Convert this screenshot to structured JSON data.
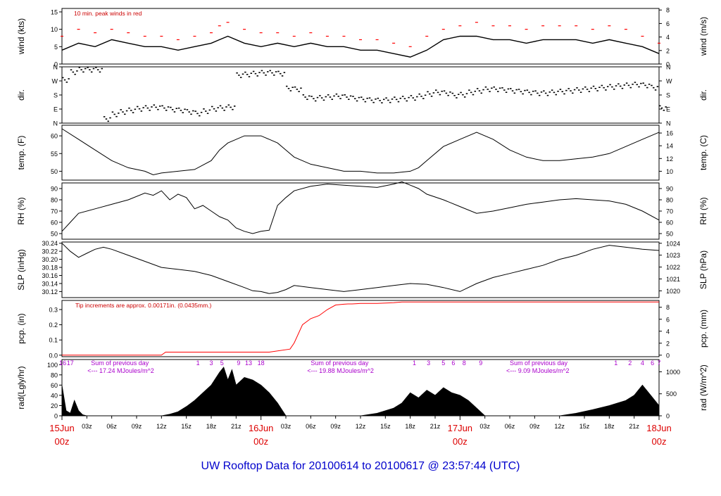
{
  "page": {
    "title": "UW Rooftop Data for 20100614  to  20100617 @ 23:57:44  (UTC)",
    "title_color": "#0000cc",
    "date_labels": [
      {
        "x": 0,
        "day": "15Jun",
        "hour": "00z"
      },
      {
        "x": 24,
        "day": "16Jun",
        "hour": "00z"
      },
      {
        "x": 48,
        "day": "17Jun",
        "hour": "00z"
      },
      {
        "x": 72,
        "day": "18Jun",
        "hour": "00z"
      }
    ],
    "date_label_color": "#dd0000",
    "hour_ticks": [
      {
        "x": 3,
        "label": "03z"
      },
      {
        "x": 6,
        "label": "06z"
      },
      {
        "x": 9,
        "label": "09z"
      },
      {
        "x": 12,
        "label": "12z"
      },
      {
        "x": 15,
        "label": "15z"
      },
      {
        "x": 18,
        "label": "18z"
      },
      {
        "x": 21,
        "label": "21z"
      },
      {
        "x": 27,
        "label": "03z"
      },
      {
        "x": 30,
        "label": "06z"
      },
      {
        "x": 33,
        "label": "09z"
      },
      {
        "x": 36,
        "label": "12z"
      },
      {
        "x": 39,
        "label": "15z"
      },
      {
        "x": 42,
        "label": "18z"
      },
      {
        "x": 45,
        "label": "21z"
      },
      {
        "x": 51,
        "label": "03z"
      },
      {
        "x": 54,
        "label": "06z"
      },
      {
        "x": 57,
        "label": "09z"
      },
      {
        "x": 60,
        "label": "12z"
      },
      {
        "x": 63,
        "label": "15z"
      },
      {
        "x": 66,
        "label": "18z"
      },
      {
        "x": 69,
        "label": "21z"
      }
    ]
  },
  "chart_data": [
    {
      "id": "wind",
      "type": "line",
      "ylabel_left": "wind (kts)",
      "ylabel_right": "wind (m/s)",
      "ylim": [
        0,
        16
      ],
      "left_ticks": [
        0,
        5,
        10,
        15
      ],
      "right_ticks": [
        {
          "value": 0,
          "label": "0"
        },
        {
          "value": 3.888,
          "label": "2"
        },
        {
          "value": 7.776,
          "label": "4"
        },
        {
          "value": 11.664,
          "label": "6"
        },
        {
          "value": 15.552,
          "label": "8"
        }
      ],
      "annotation": "10 min. peak winds in red",
      "annotation_color": "#cc0000",
      "x": [
        0,
        2,
        4,
        6,
        8,
        10,
        12,
        14,
        16,
        18,
        19,
        20,
        22,
        24,
        26,
        28,
        30,
        32,
        34,
        36,
        38,
        40,
        42,
        44,
        46,
        48,
        50,
        52,
        54,
        56,
        58,
        60,
        62,
        64,
        66,
        68,
        70,
        72
      ],
      "series": [
        {
          "name": "wind",
          "values": [
            4,
            6,
            5,
            7,
            6,
            5,
            5,
            4,
            5,
            6,
            7,
            8,
            6,
            5,
            6,
            5,
            6,
            5,
            5,
            4,
            4,
            3,
            2,
            4,
            7,
            8,
            8,
            7,
            7,
            6,
            7,
            7,
            7,
            6,
            7,
            6,
            5,
            3
          ],
          "color": "#000000"
        },
        {
          "name": "peak",
          "values": [
            8,
            10,
            9,
            10,
            9,
            8,
            8,
            7,
            8,
            9,
            11,
            12,
            10,
            9,
            9,
            8,
            9,
            8,
            8,
            7,
            7,
            6,
            5,
            8,
            10,
            11,
            12,
            11,
            11,
            10,
            11,
            11,
            11,
            10,
            11,
            10,
            8,
            6
          ],
          "color": "#ff0000"
        }
      ]
    },
    {
      "id": "dir",
      "type": "scatter",
      "ylabel_left": "dir.",
      "ylabel_right": "dir.",
      "ylim": [
        0,
        360
      ],
      "ticks": [
        {
          "value": 0,
          "label": "N"
        },
        {
          "value": 90,
          "label": "E"
        },
        {
          "value": 180,
          "label": "S"
        },
        {
          "value": 270,
          "label": "W"
        },
        {
          "value": 360,
          "label": "N"
        }
      ],
      "x": [
        0,
        1,
        2,
        3,
        4,
        5,
        6,
        7,
        8,
        9,
        10,
        11,
        12,
        13,
        14,
        15,
        16,
        17,
        18,
        19,
        20,
        21,
        22,
        23,
        24,
        25,
        26,
        27,
        28,
        29,
        30,
        31,
        32,
        33,
        34,
        35,
        36,
        37,
        38,
        39,
        40,
        41,
        42,
        43,
        44,
        45,
        46,
        47,
        48,
        49,
        50,
        51,
        52,
        53,
        54,
        55,
        56,
        57,
        58,
        59,
        60,
        61,
        62,
        63,
        64,
        65,
        66,
        67,
        68,
        69,
        70,
        71,
        72
      ],
      "series": [
        {
          "name": "dir",
          "values": [
            280,
            330,
            345,
            345,
            345,
            30,
            60,
            75,
            85,
            95,
            100,
            105,
            100,
            90,
            85,
            75,
            65,
            80,
            95,
            100,
            105,
            310,
            315,
            320,
            325,
            325,
            320,
            225,
            220,
            170,
            160,
            165,
            170,
            175,
            170,
            160,
            155,
            150,
            148,
            150,
            155,
            160,
            165,
            175,
            190,
            200,
            195,
            180,
            185,
            200,
            210,
            220,
            220,
            215,
            210,
            205,
            200,
            195,
            195,
            200,
            205,
            210,
            215,
            220,
            225,
            230,
            235,
            240,
            245,
            250,
            245,
            230,
            100
          ],
          "color": "#000000"
        }
      ]
    },
    {
      "id": "temp",
      "type": "line",
      "ylabel_left": "temp. (F)",
      "ylabel_right": "temp. (C)",
      "ylim": [
        47.5,
        63
      ],
      "left_ticks": [
        50,
        55,
        60
      ],
      "right_ticks": [
        {
          "value": 50,
          "label": "10"
        },
        {
          "value": 53.6,
          "label": "12"
        },
        {
          "value": 57.2,
          "label": "14"
        },
        {
          "value": 60.8,
          "label": "16"
        }
      ],
      "x": [
        0,
        2,
        4,
        6,
        8,
        10,
        11,
        12,
        14,
        16,
        18,
        19,
        20,
        22,
        24,
        25,
        26,
        27,
        28,
        30,
        32,
        34,
        36,
        38,
        40,
        42,
        43,
        44,
        46,
        48,
        50,
        52,
        54,
        56,
        58,
        60,
        62,
        64,
        66,
        68,
        70,
        72
      ],
      "series": [
        {
          "name": "temp",
          "values": [
            62,
            59,
            56,
            53,
            51,
            50,
            49,
            49.5,
            50,
            50.5,
            53,
            56,
            58,
            60,
            60,
            59,
            58,
            56,
            54,
            52,
            51,
            50,
            50,
            49.5,
            49.5,
            50,
            51,
            53,
            57,
            59,
            61,
            59,
            56,
            54,
            53,
            53,
            53.5,
            54,
            55,
            57,
            59,
            61
          ],
          "color": "#000000"
        }
      ]
    },
    {
      "id": "rh",
      "type": "line",
      "ylabel_left": "RH (%)",
      "ylabel_right": "RH (%)",
      "ylim": [
        45,
        95
      ],
      "left_ticks": [
        50,
        60,
        70,
        80,
        90
      ],
      "right_ticks": [
        {
          "value": 50,
          "label": "50"
        },
        {
          "value": 60,
          "label": "60"
        },
        {
          "value": 70,
          "label": "70"
        },
        {
          "value": 80,
          "label": "80"
        },
        {
          "value": 90,
          "label": "90"
        }
      ],
      "x": [
        0,
        1,
        2,
        4,
        6,
        8,
        10,
        11,
        12,
        13,
        14,
        15,
        16,
        17,
        18,
        19,
        20,
        21,
        22,
        23,
        24,
        25,
        26,
        27,
        28,
        30,
        32,
        34,
        36,
        38,
        40,
        41,
        42,
        43,
        44,
        46,
        48,
        50,
        52,
        54,
        56,
        58,
        60,
        62,
        64,
        66,
        68,
        70,
        72
      ],
      "series": [
        {
          "name": "rh",
          "values": [
            52,
            60,
            68,
            72,
            76,
            80,
            86,
            84,
            88,
            80,
            85,
            82,
            72,
            75,
            70,
            65,
            62,
            55,
            52,
            50,
            52,
            53,
            75,
            82,
            88,
            92,
            94,
            93,
            92,
            91,
            94,
            96,
            93,
            90,
            85,
            80,
            74,
            68,
            70,
            73,
            76,
            78,
            80,
            81,
            80,
            79,
            76,
            70,
            62
          ],
          "color": "#000000"
        }
      ]
    },
    {
      "id": "slp",
      "type": "line",
      "ylabel_left": "SLP (inHg)",
      "ylabel_right": "SLP (hPa)",
      "ylim": [
        30.105,
        30.243
      ],
      "left_ticks": [
        30.12,
        30.14,
        30.16,
        30.18,
        30.2,
        30.22,
        30.24
      ],
      "left_tick_labels": [
        "30.12",
        "30.14",
        "30.16",
        "30.18",
        "30.20",
        "30.22",
        "30.24"
      ],
      "right_ticks": [
        {
          "value": 30.1218,
          "label": "1020"
        },
        {
          "value": 30.1513,
          "label": "1021"
        },
        {
          "value": 30.1808,
          "label": "1022"
        },
        {
          "value": 30.2104,
          "label": "1023"
        },
        {
          "value": 30.2399,
          "label": "1024"
        }
      ],
      "x": [
        0,
        1,
        2,
        3,
        4,
        5,
        6,
        8,
        10,
        12,
        14,
        16,
        18,
        20,
        22,
        23,
        24,
        25,
        26,
        27,
        28,
        30,
        32,
        34,
        36,
        38,
        40,
        42,
        44,
        46,
        48,
        50,
        52,
        54,
        56,
        58,
        60,
        62,
        64,
        66,
        68,
        70,
        72
      ],
      "series": [
        {
          "name": "slp",
          "values": [
            30.24,
            30.22,
            30.205,
            30.215,
            30.225,
            30.23,
            30.225,
            30.21,
            30.195,
            30.18,
            30.175,
            30.17,
            30.16,
            30.145,
            30.13,
            30.122,
            30.12,
            30.115,
            30.118,
            30.125,
            30.135,
            30.13,
            30.125,
            30.12,
            30.125,
            30.13,
            30.135,
            30.14,
            30.138,
            30.13,
            30.12,
            30.14,
            30.155,
            30.165,
            30.175,
            30.185,
            30.2,
            30.21,
            30.225,
            30.235,
            30.23,
            30.225,
            30.222
          ],
          "color": "#000000"
        }
      ]
    },
    {
      "id": "pcp",
      "type": "line",
      "ylabel_left": "pcp. (in)",
      "ylabel_right": "pcp. (mm)",
      "ylim": [
        -0.01,
        0.36
      ],
      "left_ticks": [
        0,
        0.1,
        0.2,
        0.3
      ],
      "left_tick_labels": [
        "0.0",
        "0.1",
        "0.2",
        "0.3"
      ],
      "right_ticks": [
        {
          "value": 0,
          "label": "0"
        },
        {
          "value": 0.0787,
          "label": "2"
        },
        {
          "value": 0.1575,
          "label": "4"
        },
        {
          "value": 0.2362,
          "label": "6"
        },
        {
          "value": 0.315,
          "label": "8"
        }
      ],
      "annotation": "Tip increments are approx. 0.00171in. (0.0435mm.)",
      "annotation_color": "#cc0000",
      "x": [
        0,
        12,
        12.5,
        14,
        25,
        27.5,
        28,
        29,
        30,
        31,
        32,
        33,
        34,
        34.5,
        35,
        36,
        38,
        40,
        41,
        72
      ],
      "series": [
        {
          "name": "pcp",
          "values": [
            0,
            0,
            0.02,
            0.02,
            0.02,
            0.04,
            0.08,
            0.2,
            0.24,
            0.26,
            0.3,
            0.33,
            0.335,
            0.337,
            0.337,
            0.34,
            0.34,
            0.345,
            0.35,
            0.35
          ],
          "color": "#ff0000"
        }
      ]
    },
    {
      "id": "rad",
      "type": "area",
      "ylabel_left": "rad(Lgly/hr)",
      "ylabel_right": "rad (W/m^2)",
      "ylim": [
        0,
        110
      ],
      "left_ticks": [
        0,
        20,
        40,
        60,
        80,
        100
      ],
      "right_ticks": [
        {
          "value": 0,
          "label": "0"
        },
        {
          "value": 43,
          "label": "500"
        },
        {
          "value": 86,
          "label": "1000"
        }
      ],
      "hour_labels": [
        {
          "x": 0.1,
          "label": "16"
        },
        {
          "x": 1.0,
          "label": "17"
        },
        {
          "x": 16.4,
          "label": "1"
        },
        {
          "x": 18.0,
          "label": "3"
        },
        {
          "x": 19.3,
          "label": "5"
        },
        {
          "x": 21.3,
          "label": "9"
        },
        {
          "x": 22.5,
          "label": "13"
        },
        {
          "x": 24.0,
          "label": "18"
        },
        {
          "x": 42.5,
          "label": "1"
        },
        {
          "x": 44.2,
          "label": "3"
        },
        {
          "x": 46.0,
          "label": "5"
        },
        {
          "x": 47.2,
          "label": "6"
        },
        {
          "x": 48.5,
          "label": "8"
        },
        {
          "x": 50.5,
          "label": "9"
        },
        {
          "x": 66.8,
          "label": "1"
        },
        {
          "x": 68.5,
          "label": "2"
        },
        {
          "x": 70.0,
          "label": "4"
        },
        {
          "x": 71.2,
          "label": "6"
        },
        {
          "x": 72.0,
          "label": "7"
        }
      ],
      "hour_label_color": "#aa00cc",
      "daily_notes": [
        {
          "x": 3.5,
          "line1": "Sum of previous day",
          "line2": "<--- 17.24 MJoules/m^2"
        },
        {
          "x": 30.0,
          "line1": "Sum of previous day",
          "line2": "<--- 19.88 MJoules/m^2"
        },
        {
          "x": 54.0,
          "line1": "Sum of previous day",
          "line2": "<--- 9.09 MJoules/m^2"
        }
      ],
      "x": [
        0,
        0.5,
        1,
        1.5,
        2,
        2.5,
        3,
        12,
        13,
        14,
        15,
        16,
        17,
        18,
        19,
        19.5,
        20,
        20.5,
        21,
        22,
        23,
        24,
        25,
        26,
        27,
        36,
        38,
        40,
        41,
        42,
        43,
        44,
        45,
        46,
        47,
        48,
        49,
        50,
        51,
        60,
        62,
        64,
        66,
        68,
        69,
        70,
        71,
        72
      ],
      "series": [
        {
          "name": "rad",
          "values": [
            60,
            10,
            5,
            30,
            10,
            2,
            0,
            0,
            3,
            8,
            18,
            30,
            45,
            60,
            85,
            95,
            70,
            90,
            60,
            75,
            70,
            60,
            45,
            25,
            0,
            0,
            5,
            15,
            25,
            45,
            35,
            50,
            40,
            55,
            45,
            40,
            30,
            15,
            0,
            0,
            5,
            12,
            20,
            30,
            40,
            60,
            40,
            20
          ],
          "color": "#000000"
        }
      ]
    }
  ]
}
